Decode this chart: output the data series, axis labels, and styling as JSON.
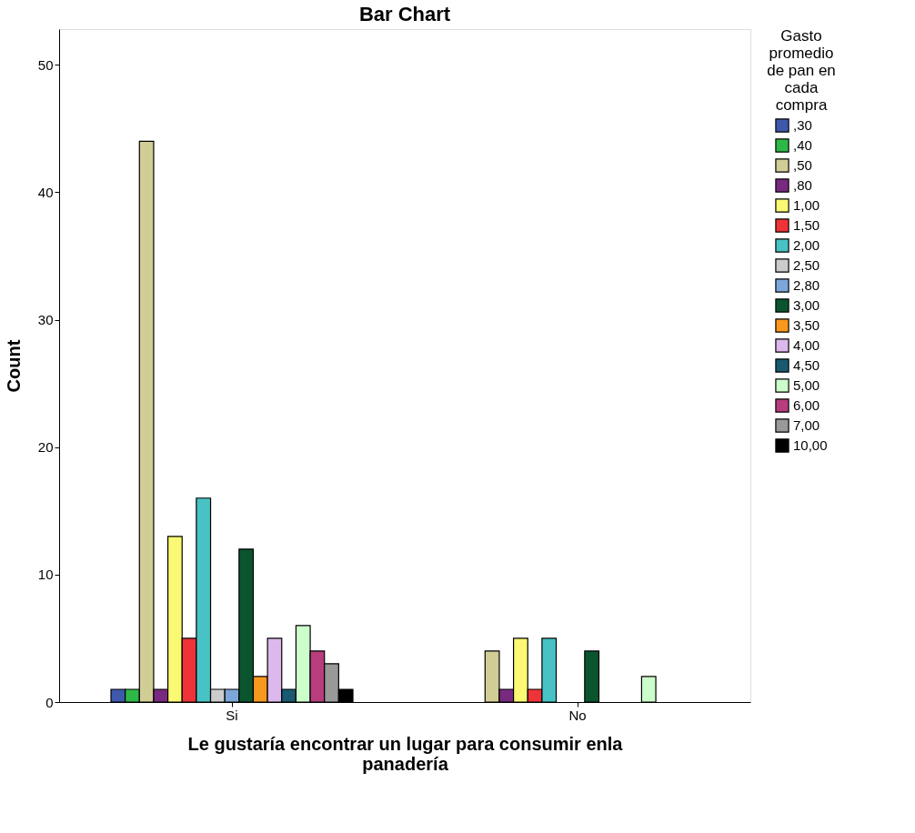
{
  "chart_data": {
    "type": "bar",
    "title": "Bar Chart",
    "xlabel": "Le gustaría encontrar un lugar para consumir enla panadería",
    "ylabel": "Count",
    "legend_title": "Gasto promedio de pan en cada compra",
    "categories": [
      "Si",
      "No"
    ],
    "series": [
      {
        "name": ",30",
        "color": "#3e58ac",
        "values": [
          1,
          null
        ]
      },
      {
        "name": ",40",
        "color": "#2eb848",
        "values": [
          1,
          null
        ]
      },
      {
        "name": ",50",
        "color": "#d1cd95",
        "values": [
          44,
          4
        ]
      },
      {
        "name": ",80",
        "color": "#782a80",
        "values": [
          1,
          1
        ]
      },
      {
        "name": "1,00",
        "color": "#fbf873",
        "values": [
          13,
          5
        ]
      },
      {
        "name": "1,50",
        "color": "#ef3338",
        "values": [
          5,
          1
        ]
      },
      {
        "name": "2,00",
        "color": "#48c2c5",
        "values": [
          16,
          5
        ]
      },
      {
        "name": "2,50",
        "color": "#cccccc",
        "values": [
          1,
          null
        ]
      },
      {
        "name": "2,80",
        "color": "#7ba7da",
        "values": [
          1,
          null
        ]
      },
      {
        "name": "3,00",
        "color": "#0b552e",
        "values": [
          12,
          4
        ]
      },
      {
        "name": "3,50",
        "color": "#f8981d",
        "values": [
          2,
          null
        ]
      },
      {
        "name": "4,00",
        "color": "#dcb8ec",
        "values": [
          5,
          null
        ]
      },
      {
        "name": "4,50",
        "color": "#195a71",
        "values": [
          1,
          null
        ]
      },
      {
        "name": "5,00",
        "color": "#ccfecb",
        "values": [
          6,
          2
        ]
      },
      {
        "name": "6,00",
        "color": "#b73d7d",
        "values": [
          4,
          null
        ]
      },
      {
        "name": "7,00",
        "color": "#999999",
        "values": [
          3,
          null
        ]
      },
      {
        "name": "10,00",
        "color": "#000000",
        "values": [
          1,
          null
        ]
      }
    ],
    "ylim": [
      0,
      52.8
    ],
    "yticks": [
      0,
      10,
      20,
      30,
      40,
      50
    ],
    "grid": false,
    "legend": "right"
  }
}
